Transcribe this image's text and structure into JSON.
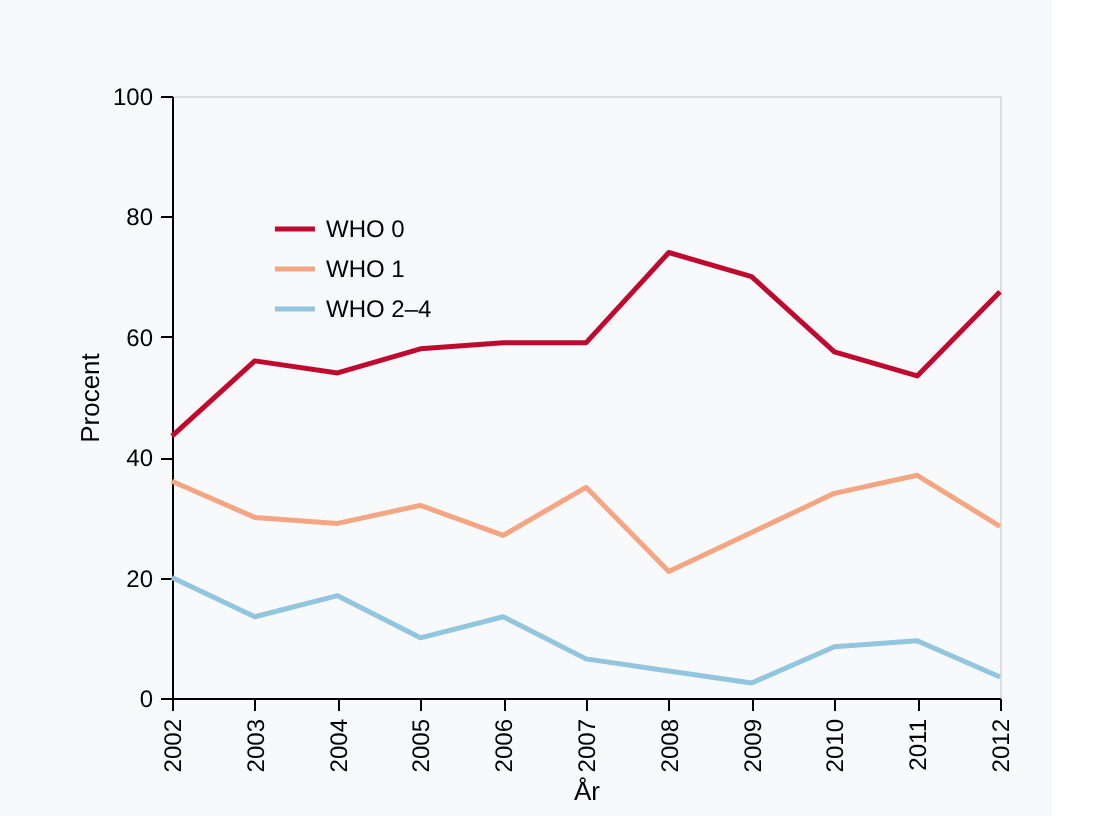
{
  "chart_data": {
    "type": "line",
    "xlabel": "År",
    "ylabel": "Procent",
    "categories": [
      "2002",
      "2003",
      "2004",
      "2005",
      "2006",
      "2007",
      "2008",
      "2009",
      "2010",
      "2011",
      "2012"
    ],
    "series": [
      {
        "name": "WHO 0",
        "color": "#c0092e",
        "values": [
          43.5,
          56,
          54,
          58,
          59,
          59,
          74,
          70,
          57.5,
          53.5,
          67.5
        ]
      },
      {
        "name": "WHO 1",
        "color": "#f4a582",
        "values": [
          36,
          30,
          29,
          32,
          27,
          35,
          21,
          27.5,
          34,
          37,
          28.5
        ]
      },
      {
        "name": "WHO 2–4",
        "color": "#92c5de",
        "values": [
          20,
          13.5,
          17,
          10,
          13.5,
          6.5,
          4.5,
          2.5,
          8.5,
          9.5,
          3.5
        ]
      }
    ],
    "ylim": [
      0,
      100
    ],
    "yticks": [
      0,
      20,
      40,
      60,
      80,
      100
    ],
    "grid": false,
    "legend": "top left",
    "marker": "none",
    "line_style": "solid"
  }
}
